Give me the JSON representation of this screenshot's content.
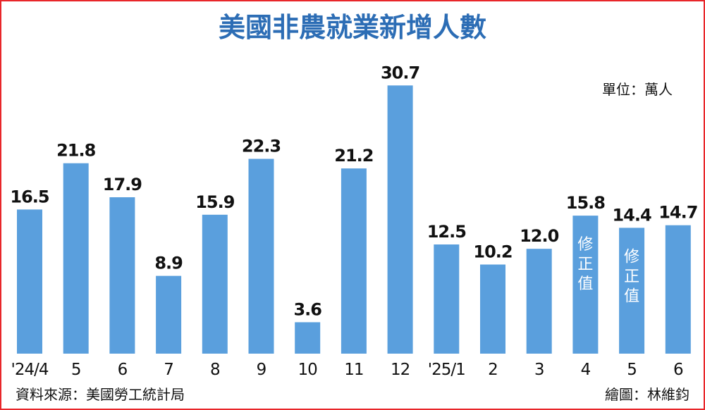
{
  "colors": {
    "bar": "#5a9fdd",
    "title": "#2c6db5",
    "border": "#e8262a",
    "text": "#111111"
  },
  "unit_label": "單位：萬人",
  "source_label": "資料來源：美國勞工統計局",
  "credit_label": "繪圖：林維鈞",
  "chart_data": {
    "type": "bar",
    "title": "美國非農就業新增人數",
    "xlabel": "",
    "ylabel": "",
    "ylim": [
      0,
      32
    ],
    "grid": false,
    "legend": "none",
    "categories": [
      "'24/4",
      "5",
      "6",
      "7",
      "8",
      "9",
      "10",
      "11",
      "12",
      "'25/1",
      "2",
      "3",
      "4",
      "5",
      "6"
    ],
    "values": [
      16.5,
      21.8,
      17.9,
      8.9,
      15.9,
      22.3,
      3.6,
      21.2,
      30.7,
      12.5,
      10.2,
      12.0,
      15.8,
      14.4,
      14.7
    ],
    "value_labels": [
      "16.5",
      "21.8",
      "17.9",
      "8.9",
      "15.9",
      "22.3",
      "3.6",
      "21.2",
      "30.7",
      "12.5",
      "10.2",
      "12.0",
      "15.8",
      "14.4",
      "14.7"
    ],
    "annotations": [
      {
        "category_index": 12,
        "text": "修正值"
      },
      {
        "category_index": 13,
        "text": "修正值"
      }
    ]
  }
}
